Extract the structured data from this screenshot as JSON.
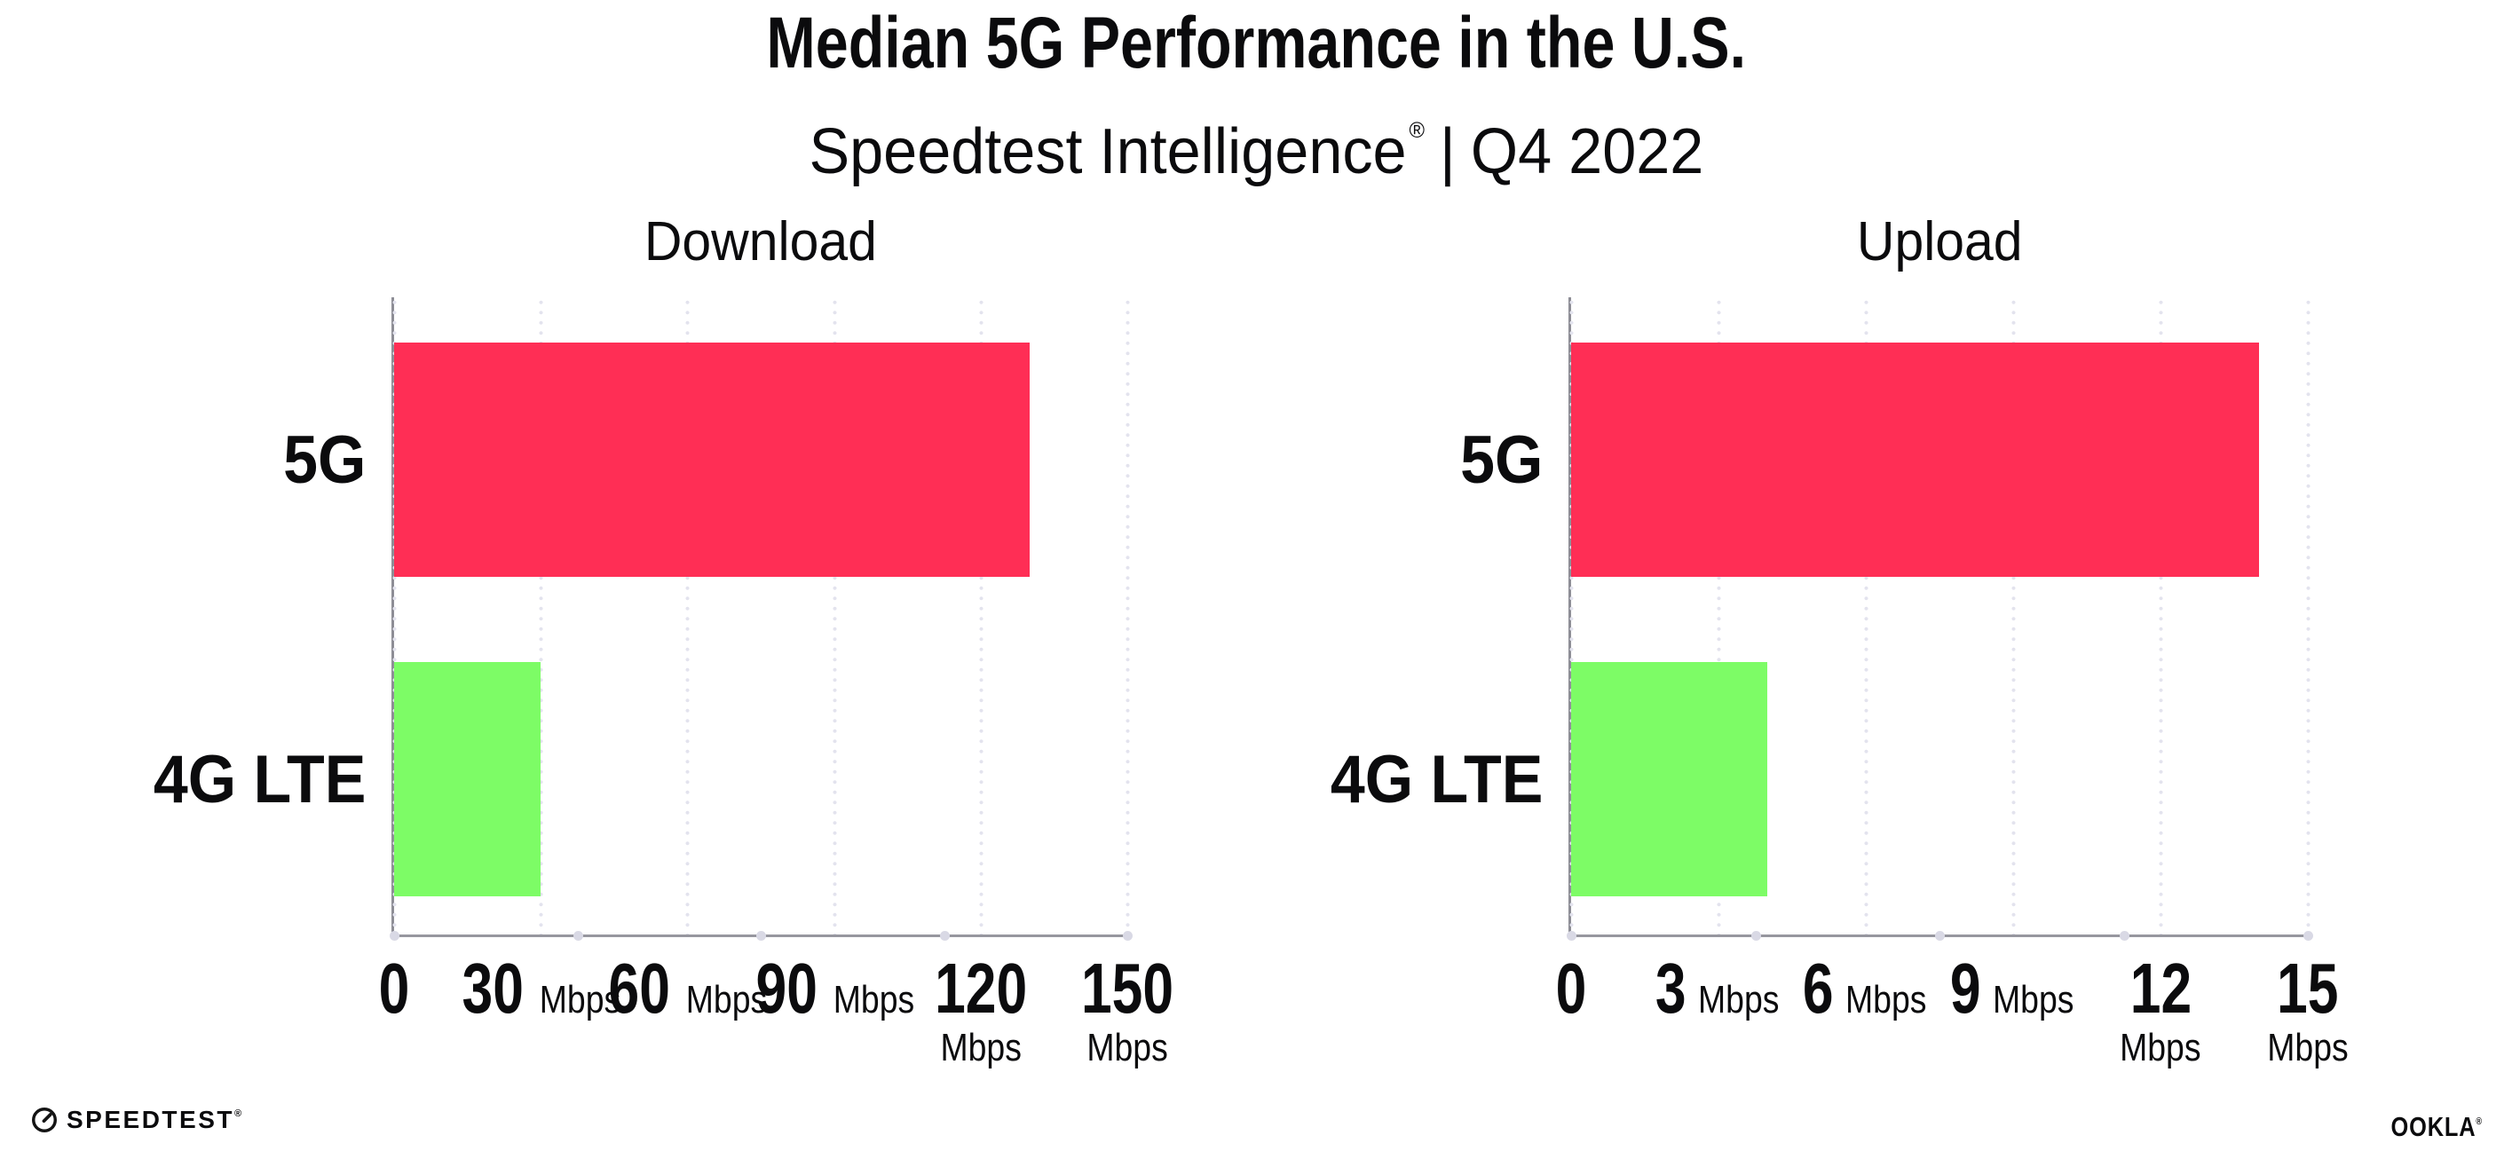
{
  "header": {
    "title": "Median 5G Performance in the U.S.",
    "subtitle": {
      "brand": "Speedtest Intelligence",
      "registered": "®",
      "separator": "|",
      "period": "Q4 2022"
    }
  },
  "chart_data": [
    {
      "type": "bar",
      "orientation": "horizontal",
      "title": "Download",
      "categories": [
        "5G",
        "4G LTE"
      ],
      "values": [
        130,
        30
      ],
      "unit": "Mbps",
      "xlim": [
        0,
        150
      ],
      "xticks": [
        0,
        30,
        60,
        90,
        120,
        150
      ],
      "bar_colors": [
        "#ff2e55",
        "#7dfc66"
      ],
      "grid": "vertical-dotted",
      "legend": "none"
    },
    {
      "type": "bar",
      "orientation": "horizontal",
      "title": "Upload",
      "categories": [
        "5G",
        "4G LTE"
      ],
      "values": [
        14,
        4
      ],
      "unit": "Mbps",
      "xlim": [
        0,
        15
      ],
      "xticks": [
        0,
        3,
        6,
        9,
        12,
        15
      ],
      "bar_colors": [
        "#ff2e55",
        "#7dfc66"
      ],
      "grid": "vertical-dotted",
      "legend": "none"
    }
  ],
  "footer": {
    "speedtest_label": "SPEEDTEST",
    "speedtest_reg": "®",
    "ookla_label": "OOKLA",
    "ookla_reg": "®"
  },
  "colors": {
    "bar_5g": "#ff2e55",
    "bar_4g_lte": "#7dfc66",
    "axis_line": "#97979f",
    "gridline_dots": "#e3e3ee",
    "axis_dots": "#d9d9e5",
    "text": "#0b0b0d",
    "background": "#ffffff"
  }
}
